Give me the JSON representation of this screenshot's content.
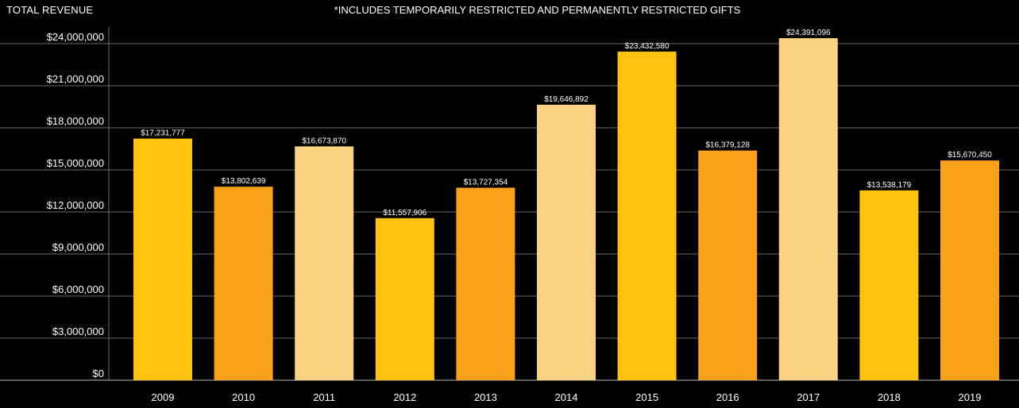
{
  "header": {
    "title": "TOTAL REVENUE",
    "note": "*INCLUDES TEMPORARILY RESTRICTED AND PERMANENTLY RESTRICTED GIFTS"
  },
  "chart_data": {
    "type": "bar",
    "categories": [
      "2009",
      "2010",
      "2011",
      "2012",
      "2013",
      "2014",
      "2015",
      "2016",
      "2017",
      "2018",
      "2019"
    ],
    "values": [
      17231777,
      13802639,
      16673870,
      11557906,
      13727354,
      19646892,
      23432580,
      16379128,
      24391096,
      13538179,
      15670450
    ],
    "value_labels": [
      "$17,231,777",
      "$13,802,639",
      "$16,673,870",
      "$11,557,906",
      "$13,727,354",
      "$19,646,892",
      "$23,432,580",
      "$16,379,128",
      "$24,391,096",
      "$13,538,179",
      "$15,670,450"
    ],
    "y_ticks": [
      0,
      3000000,
      6000000,
      9000000,
      12000000,
      15000000,
      18000000,
      21000000,
      24000000
    ],
    "y_tick_labels": [
      "$0",
      "$3,000,000",
      "$6,000,000",
      "$9,000,000",
      "$12,000,000",
      "$15,000,000",
      "$18,000,000",
      "$21,000,000",
      "$24,000,000"
    ],
    "ylim": [
      0,
      24000000
    ],
    "grid": true,
    "colors": [
      "#FFC20E",
      "#F9A11B",
      "#F9D382",
      "#FFC20E",
      "#F9A11B",
      "#F9D382",
      "#FFC20E",
      "#F9A11B",
      "#F9D382",
      "#FFC20E",
      "#F9A11B"
    ],
    "background": "#000000",
    "gridline_color": "#8c8c8c"
  }
}
